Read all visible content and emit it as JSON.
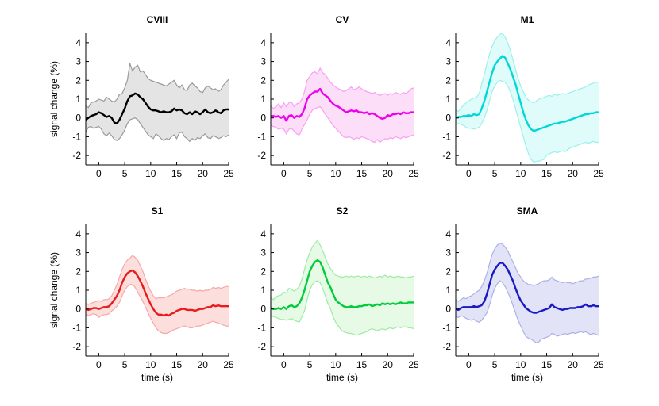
{
  "figure": {
    "background": "#ffffff",
    "rows": 2,
    "cols": 3
  },
  "axes": {
    "ylabel": "signal change (%)",
    "xlabel": "time (s)",
    "x_ticks": [
      0,
      5,
      10,
      15,
      20,
      25
    ],
    "y_ticks": [
      -2,
      -1,
      0,
      1,
      2,
      3,
      4
    ],
    "x_range": [
      -2.5,
      25
    ],
    "y_range": [
      -2.5,
      4.5
    ],
    "grid": false,
    "spines": [
      "left",
      "bottom"
    ]
  },
  "chart_data": [
    {
      "type": "line",
      "title": "CVIII",
      "line_color": "#000000",
      "band_fill": "#e4e4e4",
      "band_edge": "#9a9a9a",
      "x": [
        -2.5,
        -2,
        -1.5,
        -1,
        -0.5,
        0,
        0.5,
        1,
        1.5,
        2,
        2.5,
        3,
        3.5,
        4,
        4.5,
        5,
        5.5,
        6,
        6.5,
        7,
        7.5,
        8,
        8.5,
        9,
        9.5,
        10,
        10.5,
        11,
        11.5,
        12,
        12.5,
        13,
        13.5,
        14,
        14.5,
        15,
        15.5,
        16,
        16.5,
        17,
        17.5,
        18,
        18.5,
        19,
        19.5,
        20,
        20.5,
        21,
        21.5,
        22,
        22.5,
        23,
        23.5,
        24,
        24.5,
        25
      ],
      "mean": [
        -0.1,
        0,
        0.1,
        0.15,
        0.2,
        0.3,
        0.25,
        0.15,
        0.05,
        0.1,
        0,
        -0.25,
        -0.3,
        -0.1,
        0.2,
        0.5,
        0.9,
        1.15,
        1.2,
        1.3,
        1.25,
        1.1,
        1,
        0.8,
        0.6,
        0.45,
        0.4,
        0.4,
        0.35,
        0.3,
        0.35,
        0.3,
        0.3,
        0.35,
        0.5,
        0.4,
        0.45,
        0.4,
        0.25,
        0.2,
        0.3,
        0.2,
        0.35,
        0.3,
        0.2,
        0.3,
        0.45,
        0.3,
        0.25,
        0.3,
        0.4,
        0.3,
        0.25,
        0.4,
        0.45,
        0.45
      ],
      "upper": [
        0.65,
        0.55,
        0.8,
        0.85,
        0.9,
        1,
        0.95,
        0.9,
        1.1,
        1,
        0.9,
        0.85,
        1,
        1.25,
        1.3,
        1.6,
        2,
        2.9,
        2.5,
        2.7,
        2.8,
        2.45,
        2.5,
        2.3,
        2.1,
        2,
        1.95,
        1.9,
        1.85,
        1.8,
        1.75,
        1.7,
        1.8,
        1.9,
        2,
        1.75,
        1.6,
        1.75,
        1.5,
        1.45,
        1.75,
        1.85,
        1.7,
        1.6,
        1.4,
        1.35,
        1.6,
        1.7,
        1.6,
        1.5,
        1.55,
        1.4,
        1.5,
        1.75,
        1.9,
        2.05
      ],
      "lower": [
        -0.75,
        -0.5,
        -0.45,
        -0.55,
        -0.5,
        -0.45,
        -0.6,
        -0.85,
        -0.95,
        -0.8,
        -0.95,
        -1.15,
        -1.2,
        -1.1,
        -0.9,
        -0.65,
        -0.3,
        -0.1,
        -0.05,
        0,
        -0.1,
        -0.3,
        -0.5,
        -0.7,
        -0.9,
        -1,
        -1.1,
        -0.85,
        -0.95,
        -1.1,
        -1.2,
        -1.1,
        -1.15,
        -1,
        -0.9,
        -1.1,
        -0.8,
        -0.75,
        -1,
        -1.1,
        -1.25,
        -1.1,
        -1.2,
        -1.05,
        -1.1,
        -0.95,
        -0.85,
        -1.05,
        -1.1,
        -0.95,
        -1,
        -1.1,
        -1.05,
        -0.95,
        -1,
        -0.9
      ]
    },
    {
      "type": "line",
      "title": "CV",
      "line_color": "#ee00ee",
      "band_fill": "#fcdef9",
      "band_edge": "#f9a0f0",
      "x": [
        -2.5,
        -2,
        -1.5,
        -1,
        -0.5,
        0,
        0.5,
        1,
        1.5,
        2,
        2.5,
        3,
        3.5,
        4,
        4.5,
        5,
        5.5,
        6,
        6.5,
        7,
        7.5,
        8,
        8.5,
        9,
        9.5,
        10,
        10.5,
        11,
        11.5,
        12,
        12.5,
        13,
        13.5,
        14,
        14.5,
        15,
        15.5,
        16,
        16.5,
        17,
        17.5,
        18,
        18.5,
        19,
        19.5,
        20,
        20.5,
        21,
        21.5,
        22,
        22.5,
        23,
        23.5,
        24,
        24.5,
        25
      ],
      "mean": [
        0.1,
        0.1,
        0.05,
        0.1,
        0,
        0.1,
        -0.15,
        0.1,
        0.15,
        0,
        0.1,
        0.05,
        0.2,
        0.5,
        1,
        1.2,
        1.3,
        1.4,
        1.4,
        1.55,
        1.3,
        1.2,
        1.1,
        0.9,
        0.75,
        0.65,
        0.6,
        0.5,
        0.4,
        0.3,
        0.35,
        0.4,
        0.35,
        0.4,
        0.3,
        0.3,
        0.25,
        0.3,
        0.2,
        0.25,
        0.2,
        0.1,
        0,
        -0.05,
        0,
        0.15,
        0.1,
        0.2,
        0.2,
        0.25,
        0.2,
        0.3,
        0.25,
        0.25,
        0.3,
        0.3
      ],
      "upper": [
        0.65,
        0.5,
        0.6,
        0.75,
        0.55,
        0.8,
        0.6,
        0.8,
        0.85,
        0.6,
        0.75,
        0.8,
        1,
        1.4,
        2,
        2.2,
        2.4,
        2.45,
        2.35,
        2.65,
        2.4,
        2.3,
        2.1,
        1.9,
        1.75,
        1.65,
        1.55,
        1.5,
        1.4,
        1.45,
        1.55,
        1.65,
        1.5,
        1.55,
        1.65,
        1.55,
        1.45,
        1.4,
        1.35,
        1.3,
        1.35,
        1.25,
        1.2,
        1.25,
        1.3,
        1.2,
        1.3,
        1.25,
        1.35,
        1.3,
        1.25,
        1.35,
        1.3,
        1.4,
        1.55,
        1.6
      ],
      "lower": [
        -0.4,
        -0.45,
        -0.5,
        -0.6,
        -0.55,
        -0.6,
        -0.85,
        -0.6,
        -0.55,
        -0.7,
        -0.85,
        -0.9,
        -0.6,
        -0.35,
        -0.1,
        0.2,
        0.4,
        0.5,
        0.55,
        0.6,
        0.4,
        0.2,
        0,
        -0.2,
        -0.4,
        -0.55,
        -0.7,
        -0.85,
        -1,
        -1.05,
        -1,
        -1.05,
        -1.15,
        -1.05,
        -1.1,
        -1,
        -1.05,
        -1.1,
        -1.15,
        -1.25,
        -1.3,
        -1.15,
        -1.3,
        -1.2,
        -1.1,
        -1.15,
        -1.05,
        -1.1,
        -1,
        -1.05,
        -1.1,
        -1,
        -1.05,
        -1,
        -0.95,
        -0.9
      ]
    },
    {
      "type": "line",
      "title": "M1",
      "line_color": "#00d8d8",
      "band_fill": "#dffbfa",
      "band_edge": "#9cf1ec",
      "x": [
        -2.5,
        -2,
        -1.5,
        -1,
        -0.5,
        0,
        0.5,
        1,
        1.5,
        2,
        2.5,
        3,
        3.5,
        4,
        4.5,
        5,
        5.5,
        6,
        6.5,
        7,
        7.5,
        8,
        8.5,
        9,
        9.5,
        10,
        10.5,
        11,
        11.5,
        12,
        12.5,
        13,
        13.5,
        14,
        14.5,
        15,
        15.5,
        16,
        16.5,
        17,
        17.5,
        18,
        18.5,
        19,
        19.5,
        20,
        20.5,
        21,
        21.5,
        22,
        22.5,
        23,
        23.5,
        24,
        24.5,
        25
      ],
      "mean": [
        0,
        0.05,
        0.05,
        0.1,
        0.1,
        0.15,
        0.1,
        0.2,
        0.15,
        0.2,
        0.5,
        0.9,
        1.4,
        1.9,
        2.4,
        2.8,
        3,
        3.15,
        3.3,
        3.2,
        2.9,
        2.6,
        2.2,
        1.8,
        1.3,
        0.8,
        0.3,
        -0.1,
        -0.4,
        -0.6,
        -0.7,
        -0.65,
        -0.6,
        -0.55,
        -0.5,
        -0.45,
        -0.4,
        -0.35,
        -0.3,
        -0.3,
        -0.25,
        -0.2,
        -0.2,
        -0.15,
        -0.1,
        -0.05,
        0,
        0.05,
        0.1,
        0.15,
        0.2,
        0.2,
        0.25,
        0.25,
        0.3,
        0.3
      ],
      "upper": [
        0.4,
        0.35,
        0.5,
        0.7,
        0.8,
        0.9,
        1,
        1.05,
        1.1,
        1.3,
        1.8,
        2.3,
        2.9,
        3.4,
        3.8,
        4.1,
        4.3,
        4.45,
        4.5,
        4.3,
        4,
        3.6,
        3.1,
        2.6,
        2.1,
        1.7,
        1.4,
        1.1,
        0.95,
        0.85,
        0.8,
        0.9,
        1,
        1.05,
        1.1,
        1.15,
        1.2,
        1.15,
        1.25,
        1.2,
        1.25,
        1.3,
        1.25,
        1.3,
        1.35,
        1.4,
        1.45,
        1.5,
        1.55,
        1.6,
        1.65,
        1.75,
        1.8,
        1.85,
        1.9,
        1.9
      ],
      "lower": [
        -0.35,
        -0.3,
        -0.35,
        -0.4,
        -0.5,
        -0.55,
        -0.55,
        -0.6,
        -0.55,
        -0.5,
        -0.3,
        0,
        0.4,
        0.9,
        1.4,
        1.7,
        1.9,
        2,
        1.95,
        1.9,
        1.7,
        1.4,
        1,
        0.5,
        0,
        -0.5,
        -1,
        -1.5,
        -1.9,
        -2.2,
        -2.35,
        -2.3,
        -2.3,
        -2.25,
        -2.2,
        -2,
        -1.9,
        -1.85,
        -1.8,
        -1.85,
        -1.8,
        -1.75,
        -1.8,
        -1.7,
        -1.6,
        -1.55,
        -1.5,
        -1.45,
        -1.4,
        -1.35,
        -1.3,
        -1.35,
        -1.3,
        -1.25,
        -1.3,
        -1.3
      ]
    },
    {
      "type": "line",
      "title": "S1",
      "line_color": "#e81c1c",
      "band_fill": "#fcdedd",
      "band_edge": "#f7a8a8",
      "x": [
        -2.5,
        -2,
        -1.5,
        -1,
        -0.5,
        0,
        0.5,
        1,
        1.5,
        2,
        2.5,
        3,
        3.5,
        4,
        4.5,
        5,
        5.5,
        6,
        6.5,
        7,
        7.5,
        8,
        8.5,
        9,
        9.5,
        10,
        10.5,
        11,
        11.5,
        12,
        12.5,
        13,
        13.5,
        14,
        14.5,
        15,
        15.5,
        16,
        16.5,
        17,
        17.5,
        18,
        18.5,
        19,
        19.5,
        20,
        20.5,
        21,
        21.5,
        22,
        22.5,
        23,
        23.5,
        24,
        24.5,
        25
      ],
      "mean": [
        0,
        -0.05,
        0,
        0.05,
        0.05,
        0,
        0.05,
        0.1,
        0.1,
        0.15,
        0.3,
        0.5,
        0.7,
        1,
        1.4,
        1.7,
        1.9,
        2,
        2.05,
        1.95,
        1.75,
        1.5,
        1.2,
        0.85,
        0.55,
        0.25,
        0,
        -0.2,
        -0.3,
        -0.3,
        -0.35,
        -0.3,
        -0.35,
        -0.25,
        -0.2,
        -0.1,
        -0.05,
        0,
        0,
        -0.05,
        -0.05,
        -0.05,
        -0.1,
        -0.05,
        0,
        0,
        0.05,
        0.1,
        0.1,
        0.2,
        0.15,
        0.2,
        0.15,
        0.15,
        0.15,
        0.15
      ],
      "upper": [
        0.3,
        0.25,
        0.3,
        0.35,
        0.4,
        0.45,
        0.4,
        0.5,
        0.5,
        0.55,
        0.7,
        1,
        1.3,
        1.7,
        2.1,
        2.4,
        2.6,
        2.7,
        2.85,
        2.75,
        2.6,
        2.3,
        2,
        1.6,
        1.25,
        0.95,
        0.7,
        0.55,
        0.6,
        0.6,
        0.6,
        0.65,
        0.7,
        0.75,
        0.85,
        0.95,
        1,
        1.05,
        1.1,
        1.05,
        1.05,
        1,
        1,
        0.95,
        1,
        0.95,
        1,
        1,
        1.05,
        1.15,
        1.1,
        1.15,
        1.1,
        1.15,
        1.2,
        1.2
      ],
      "lower": [
        -0.3,
        -0.35,
        -0.3,
        -0.25,
        -0.3,
        -0.45,
        -0.35,
        -0.3,
        -0.3,
        -0.25,
        -0.1,
        0,
        0.15,
        0.35,
        0.7,
        1,
        1.2,
        1.3,
        1.3,
        1.15,
        0.9,
        0.65,
        0.4,
        0.1,
        -0.2,
        -0.5,
        -0.75,
        -1,
        -1.15,
        -1.25,
        -1.3,
        -1.3,
        -1.25,
        -1.15,
        -1.1,
        -1.05,
        -1,
        -0.95,
        -0.9,
        -0.95,
        -1,
        -1,
        -0.95,
        -0.9,
        -0.9,
        -0.85,
        -0.8,
        -0.75,
        -0.7,
        -0.65,
        -0.7,
        -0.75,
        -0.8,
        -0.85,
        -0.9,
        -0.9
      ]
    },
    {
      "type": "line",
      "title": "S2",
      "line_color": "#00cc3c",
      "band_fill": "#e7fae6",
      "band_edge": "#9ceca4",
      "x": [
        -2.5,
        -2,
        -1.5,
        -1,
        -0.5,
        0,
        0.5,
        1,
        1.5,
        2,
        2.5,
        3,
        3.5,
        4,
        4.5,
        5,
        5.5,
        6,
        6.5,
        7,
        7.5,
        8,
        8.5,
        9,
        9.5,
        10,
        10.5,
        11,
        11.5,
        12,
        12.5,
        13,
        13.5,
        14,
        14.5,
        15,
        15.5,
        16,
        16.5,
        17,
        17.5,
        18,
        18.5,
        19,
        19.5,
        20,
        20.5,
        21,
        21.5,
        22,
        22.5,
        23,
        23.5,
        24,
        24.5,
        25
      ],
      "mean": [
        0.05,
        0,
        0,
        0.05,
        0,
        0.1,
        0,
        0.15,
        0.2,
        0.1,
        0.15,
        0.3,
        0.6,
        1,
        1.5,
        2,
        2.3,
        2.5,
        2.6,
        2.5,
        2.2,
        1.8,
        1.4,
        1.15,
        0.8,
        0.5,
        0.35,
        0.25,
        0.15,
        0.1,
        0.1,
        0.15,
        0.1,
        0.1,
        0.15,
        0.15,
        0.2,
        0.2,
        0.25,
        0.15,
        0.2,
        0.25,
        0.2,
        0.3,
        0.25,
        0.3,
        0.25,
        0.3,
        0.25,
        0.3,
        0.35,
        0.3,
        0.3,
        0.35,
        0.35,
        0.35
      ],
      "upper": [
        0.6,
        0.5,
        0.65,
        0.7,
        0.75,
        0.9,
        0.85,
        1.1,
        1.05,
        0.95,
        1.05,
        1.2,
        1.6,
        2.1,
        2.6,
        3,
        3.3,
        3.5,
        3.65,
        3.4,
        3.1,
        2.75,
        2.4,
        2.15,
        1.95,
        1.8,
        1.75,
        1.7,
        1.7,
        1.75,
        1.7,
        1.75,
        1.7,
        1.75,
        1.75,
        1.7,
        1.75,
        1.7,
        1.75,
        1.7,
        1.65,
        1.7,
        1.75,
        1.7,
        1.8,
        1.7,
        1.75,
        1.7,
        1.7,
        1.75,
        1.7,
        1.7,
        1.65,
        1.7,
        1.7,
        1.75
      ],
      "lower": [
        -0.4,
        -0.4,
        -0.45,
        -0.5,
        -0.55,
        -0.55,
        -0.6,
        -0.55,
        -0.5,
        -0.6,
        -0.65,
        -0.7,
        -0.4,
        -0.1,
        0.5,
        1,
        1.3,
        1.45,
        1.5,
        1.4,
        1.1,
        0.7,
        0.3,
        0,
        -0.4,
        -0.7,
        -0.9,
        -1.1,
        -1.2,
        -1.25,
        -1.3,
        -1.3,
        -1.35,
        -1.4,
        -1.35,
        -1.3,
        -1.25,
        -1.2,
        -1.1,
        -1.05,
        -1.1,
        -1.15,
        -1.1,
        -1.05,
        -1.1,
        -1.05,
        -1,
        -1.05,
        -1,
        -0.95,
        -1,
        -0.95,
        -0.95,
        -1,
        -1,
        -1.05
      ]
    },
    {
      "type": "line",
      "title": "SMA",
      "line_color": "#1a1ac4",
      "band_fill": "#e3e3f7",
      "band_edge": "#abb1e8",
      "x": [
        -2.5,
        -2,
        -1.5,
        -1,
        -0.5,
        0,
        0.5,
        1,
        1.5,
        2,
        2.5,
        3,
        3.5,
        4,
        4.5,
        5,
        5.5,
        6,
        6.5,
        7,
        7.5,
        8,
        8.5,
        9,
        9.5,
        10,
        10.5,
        11,
        11.5,
        12,
        12.5,
        13,
        13.5,
        14,
        14.5,
        15,
        15.5,
        16,
        16.5,
        17,
        17.5,
        18,
        18.5,
        19,
        19.5,
        20,
        20.5,
        21,
        21.5,
        22,
        22.5,
        23,
        23.5,
        24,
        24.5,
        25
      ],
      "mean": [
        0,
        -0.05,
        0.05,
        0.1,
        0.1,
        0.1,
        0.1,
        0.15,
        0.1,
        0.15,
        0.2,
        0.4,
        0.8,
        1.3,
        1.8,
        2.1,
        2.3,
        2.45,
        2.45,
        2.3,
        2.1,
        1.8,
        1.5,
        1.1,
        0.75,
        0.45,
        0.25,
        0.05,
        -0.05,
        -0.15,
        -0.2,
        -0.2,
        -0.15,
        -0.1,
        -0.05,
        0,
        0.05,
        0.25,
        0.1,
        0.05,
        0,
        -0.05,
        0,
        0,
        0.05,
        0.05,
        0.05,
        0.1,
        0.1,
        0.15,
        0.25,
        0.15,
        0.15,
        0.2,
        0.15,
        0.15
      ],
      "upper": [
        0.5,
        0.4,
        0.5,
        0.6,
        0.55,
        0.65,
        0.7,
        0.8,
        0.9,
        1,
        1.2,
        1.5,
        1.9,
        2.4,
        2.9,
        3.2,
        3.4,
        3.5,
        3.45,
        3.3,
        3.1,
        2.8,
        2.5,
        2.2,
        1.9,
        1.7,
        1.5,
        1.4,
        1.3,
        1.3,
        1.25,
        1.3,
        1.35,
        1.45,
        1.5,
        1.5,
        1.55,
        1.7,
        1.55,
        1.5,
        1.45,
        1.4,
        1.45,
        1.4,
        1.4,
        1.35,
        1.4,
        1.45,
        1.5,
        1.5,
        1.6,
        1.6,
        1.65,
        1.7,
        1.7,
        1.75
      ],
      "lower": [
        -0.4,
        -0.45,
        -0.35,
        -0.4,
        -0.5,
        -0.55,
        -0.6,
        -0.55,
        -0.65,
        -0.7,
        -0.6,
        -0.4,
        -0.2,
        0.2,
        0.7,
        1.1,
        1.35,
        1.5,
        1.4,
        1.2,
        0.9,
        0.6,
        0.2,
        -0.2,
        -0.6,
        -0.9,
        -1.2,
        -1.45,
        -1.55,
        -1.6,
        -1.7,
        -1.8,
        -1.75,
        -1.6,
        -1.55,
        -1.5,
        -1.45,
        -1.3,
        -1.35,
        -1.45,
        -1.4,
        -1.35,
        -1.3,
        -1.35,
        -1.3,
        -1.25,
        -1.3,
        -1.25,
        -1.2,
        -1.25,
        -1.2,
        -1.3,
        -1.35,
        -1.3,
        -1.35,
        -1.4
      ]
    }
  ]
}
